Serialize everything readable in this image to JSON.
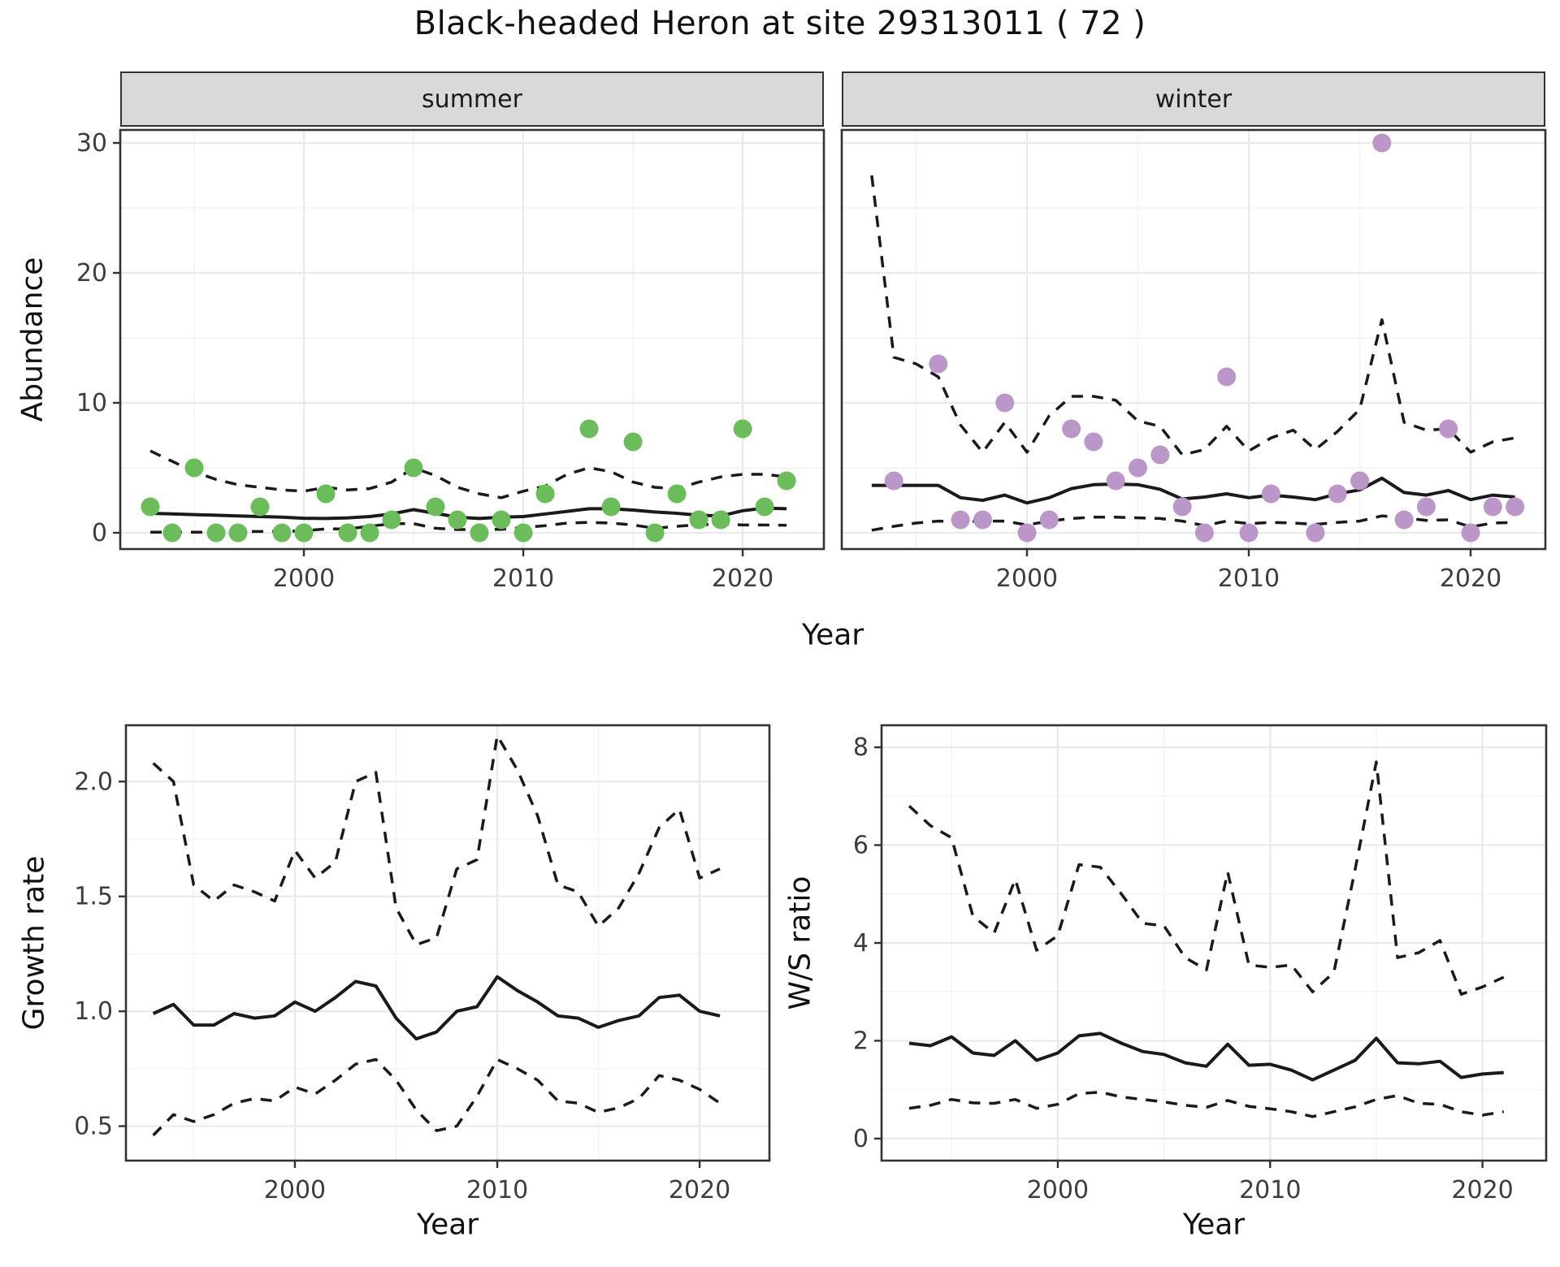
{
  "title": "Black-headed Heron at site 29313011 ( 72 )",
  "colors": {
    "summer_point": "#6abd5a",
    "winter_point": "#bb96c9",
    "line": "#1a1a1a",
    "strip_bg": "#d9d9d9",
    "panel_border": "#333333",
    "grid_major": "#e9e9e9",
    "grid_minor": "#f4f4f4",
    "tick_text": "#3d3d3d"
  },
  "top_row": {
    "xlabel": "Year",
    "facets": [
      "summer",
      "winter"
    ]
  },
  "chart_data": [
    {
      "id": "abundance-summer",
      "type": "scatter",
      "facet": "summer",
      "ylabel": "Abundance",
      "xlabel": "Year",
      "xlim": [
        1991.63,
        2023.7
      ],
      "ylim": [
        -1.25,
        31.0
      ],
      "xticks": [
        2000,
        2010,
        2020
      ],
      "xtick_labels": [
        "2000",
        "2010",
        "2020"
      ],
      "xminor": [
        1995,
        2005,
        2015
      ],
      "yticks": [
        0,
        10,
        20,
        30
      ],
      "ytick_labels": [
        "0",
        "10",
        "20",
        "30"
      ],
      "yminor": [
        5,
        15,
        25
      ],
      "show_ytick_labels": true,
      "point_color": "#6abd5a",
      "points": {
        "years": [
          1993,
          1994,
          1995,
          1996,
          1997,
          1998,
          1999,
          2000,
          2001,
          2002,
          2003,
          2004,
          2005,
          2006,
          2007,
          2008,
          2009,
          2010,
          2011,
          2013,
          2014,
          2015,
          2016,
          2017,
          2018,
          2019,
          2020,
          2021,
          2022
        ],
        "values": [
          2,
          0,
          5,
          0,
          0,
          2,
          0,
          0,
          3,
          0,
          0,
          1,
          5,
          2,
          1,
          0,
          1,
          0,
          3,
          8,
          2,
          7,
          0,
          3,
          1,
          1,
          8,
          2,
          4
        ]
      },
      "series": [
        {
          "name": "mean",
          "style": "solid",
          "years": [
            1993,
            1994,
            1995,
            1996,
            1997,
            1998,
            1999,
            2000,
            2001,
            2002,
            2003,
            2004,
            2005,
            2006,
            2007,
            2008,
            2009,
            2010,
            2011,
            2012,
            2013,
            2014,
            2015,
            2016,
            2017,
            2018,
            2019,
            2020,
            2021,
            2022
          ],
          "values": [
            1.5,
            1.45,
            1.4,
            1.35,
            1.3,
            1.25,
            1.2,
            1.12,
            1.1,
            1.15,
            1.25,
            1.45,
            1.78,
            1.5,
            1.2,
            1.1,
            1.2,
            1.25,
            1.45,
            1.65,
            1.85,
            1.85,
            1.75,
            1.6,
            1.5,
            1.35,
            1.3,
            1.7,
            1.9,
            1.85
          ]
        },
        {
          "name": "upper-ci",
          "style": "dashed",
          "years": [
            1993,
            1994,
            1995,
            1996,
            1997,
            1998,
            1999,
            2000,
            2001,
            2002,
            2003,
            2004,
            2005,
            2006,
            2007,
            2008,
            2009,
            2010,
            2011,
            2012,
            2013,
            2014,
            2015,
            2016,
            2017,
            2018,
            2019,
            2020,
            2021,
            2022
          ],
          "values": [
            6.3,
            5.5,
            4.7,
            4.1,
            3.7,
            3.5,
            3.3,
            3.2,
            3.5,
            3.3,
            3.4,
            3.9,
            5.0,
            4.4,
            3.5,
            3.0,
            2.7,
            3.2,
            3.6,
            4.5,
            5.0,
            4.7,
            3.9,
            3.5,
            3.4,
            3.9,
            4.3,
            4.5,
            4.5,
            4.3
          ]
        },
        {
          "name": "lower-ci",
          "style": "dashed",
          "years": [
            1993,
            1994,
            1995,
            1996,
            1997,
            1998,
            1999,
            2000,
            2001,
            2002,
            2003,
            2004,
            2005,
            2006,
            2007,
            2008,
            2009,
            2010,
            2011,
            2012,
            2013,
            2014,
            2015,
            2016,
            2017,
            2018,
            2019,
            2020,
            2021,
            2022
          ],
          "values": [
            0.05,
            0.05,
            0.05,
            0.05,
            0.1,
            0.1,
            0.1,
            0.15,
            0.3,
            0.3,
            0.5,
            0.7,
            0.7,
            0.35,
            0.25,
            0.25,
            0.27,
            0.4,
            0.55,
            0.75,
            0.8,
            0.75,
            0.6,
            0.35,
            0.5,
            0.62,
            0.66,
            0.6,
            0.6,
            0.58
          ]
        }
      ]
    },
    {
      "id": "abundance-winter",
      "type": "scatter",
      "facet": "winter",
      "ylabel": "Abundance",
      "xlabel": "Year",
      "xlim": [
        1991.65,
        2023.37
      ],
      "ylim": [
        -1.25,
        31.0
      ],
      "xticks": [
        2000,
        2010,
        2020
      ],
      "xtick_labels": [
        "2000",
        "2010",
        "2020"
      ],
      "xminor": [
        1995,
        2005,
        2015
      ],
      "yticks": [
        0,
        10,
        20,
        30
      ],
      "ytick_labels": [
        "0",
        "10",
        "20",
        "30"
      ],
      "yminor": [
        5,
        15,
        25
      ],
      "show_ytick_labels": false,
      "point_color": "#bb96c9",
      "points": {
        "years": [
          1994,
          1996,
          1997,
          1998,
          1999,
          2000,
          2001,
          2002,
          2003,
          2004,
          2005,
          2006,
          2007,
          2008,
          2009,
          2010,
          2011,
          2013,
          2014,
          2015,
          2016,
          2017,
          2018,
          2019,
          2020,
          2021,
          2022
        ],
        "values": [
          4,
          13,
          1,
          1,
          10,
          0,
          1,
          8,
          7,
          4,
          5,
          6,
          2,
          0,
          12,
          0,
          3,
          0,
          3,
          4,
          30,
          1,
          2,
          8,
          0,
          2,
          2
        ]
      },
      "series": [
        {
          "name": "mean",
          "style": "solid",
          "years": [
            1993,
            1994,
            1995,
            1996,
            1997,
            1998,
            1999,
            2000,
            2001,
            2002,
            2003,
            2004,
            2005,
            2006,
            2007,
            2008,
            2009,
            2010,
            2011,
            2012,
            2013,
            2014,
            2015,
            2016,
            2017,
            2018,
            2019,
            2020,
            2021,
            2022
          ],
          "values": [
            3.65,
            3.65,
            3.65,
            3.65,
            2.7,
            2.5,
            2.9,
            2.3,
            2.7,
            3.4,
            3.7,
            3.75,
            3.7,
            3.35,
            2.6,
            2.75,
            3.0,
            2.7,
            2.9,
            2.75,
            2.55,
            3.0,
            3.3,
            4.2,
            3.1,
            2.9,
            3.25,
            2.55,
            2.9,
            2.75
          ]
        },
        {
          "name": "upper-ci",
          "style": "dashed",
          "years": [
            1993,
            1994,
            1995,
            1996,
            1997,
            1998,
            1999,
            2000,
            2001,
            2002,
            2003,
            2004,
            2005,
            2006,
            2007,
            2008,
            2009,
            2010,
            2011,
            2012,
            2013,
            2014,
            2015,
            2016,
            2017,
            2018,
            2019,
            2020,
            2021,
            2022
          ],
          "values": [
            27.5,
            13.5,
            13.0,
            12.0,
            8.3,
            6.2,
            8.5,
            6.2,
            9.0,
            10.5,
            10.5,
            10.2,
            8.6,
            8.2,
            6.0,
            6.4,
            8.2,
            6.3,
            7.3,
            7.9,
            6.4,
            7.8,
            9.5,
            16.4,
            8.5,
            7.9,
            8.0,
            6.2,
            7.0,
            7.3
          ]
        },
        {
          "name": "lower-ci",
          "style": "dashed",
          "years": [
            1993,
            1994,
            1995,
            1996,
            1997,
            1998,
            1999,
            2000,
            2001,
            2002,
            2003,
            2004,
            2005,
            2006,
            2007,
            2008,
            2009,
            2010,
            2011,
            2012,
            2013,
            2014,
            2015,
            2016,
            2017,
            2018,
            2019,
            2020,
            2021,
            2022
          ],
          "values": [
            0.2,
            0.5,
            0.75,
            0.9,
            0.85,
            0.9,
            0.9,
            0.6,
            0.9,
            1.1,
            1.2,
            1.2,
            1.15,
            1.1,
            0.9,
            0.55,
            0.9,
            0.7,
            0.8,
            0.75,
            0.65,
            0.8,
            0.9,
            1.3,
            1.15,
            0.95,
            1.0,
            0.45,
            0.75,
            0.8
          ]
        }
      ]
    },
    {
      "id": "growth-rate",
      "type": "line",
      "ylabel": "Growth rate",
      "xlabel": "Year",
      "xlim": [
        1991.65,
        2023.45
      ],
      "ylim": [
        0.35,
        2.245
      ],
      "xticks": [
        2000,
        2010,
        2020
      ],
      "xtick_labels": [
        "2000",
        "2010",
        "2020"
      ],
      "xminor": [
        1995,
        2005,
        2015
      ],
      "yticks": [
        0.5,
        1.0,
        1.5,
        2.0
      ],
      "ytick_labels": [
        "0.5",
        "1.0",
        "1.5",
        "2.0"
      ],
      "yminor": [
        0.75,
        1.25,
        1.75
      ],
      "show_ytick_labels": true,
      "series": [
        {
          "name": "mean",
          "style": "solid",
          "years": [
            1993,
            1994,
            1995,
            1996,
            1997,
            1998,
            1999,
            2000,
            2001,
            2002,
            2003,
            2004,
            2005,
            2006,
            2007,
            2008,
            2009,
            2010,
            2011,
            2012,
            2013,
            2014,
            2015,
            2016,
            2017,
            2018,
            2019,
            2020,
            2021
          ],
          "values": [
            0.99,
            1.03,
            0.94,
            0.94,
            0.99,
            0.97,
            0.98,
            1.04,
            1.0,
            1.06,
            1.13,
            1.11,
            0.97,
            0.88,
            0.91,
            1.0,
            1.02,
            1.15,
            1.09,
            1.04,
            0.98,
            0.97,
            0.93,
            0.96,
            0.98,
            1.06,
            1.07,
            1.0,
            0.98
          ]
        },
        {
          "name": "upper-ci",
          "style": "dashed",
          "years": [
            1993,
            1994,
            1995,
            1996,
            1997,
            1998,
            1999,
            2000,
            2001,
            2002,
            2003,
            2004,
            2005,
            2006,
            2007,
            2008,
            2009,
            2010,
            2011,
            2012,
            2013,
            2014,
            2015,
            2016,
            2017,
            2018,
            2019,
            2020,
            2021
          ],
          "values": [
            2.08,
            2.0,
            1.55,
            1.48,
            1.55,
            1.52,
            1.48,
            1.7,
            1.58,
            1.65,
            2.0,
            2.04,
            1.45,
            1.29,
            1.32,
            1.62,
            1.66,
            2.2,
            2.05,
            1.85,
            1.55,
            1.52,
            1.37,
            1.45,
            1.6,
            1.8,
            1.88,
            1.58,
            1.62
          ]
        },
        {
          "name": "lower-ci",
          "style": "dashed",
          "years": [
            1993,
            1994,
            1995,
            1996,
            1997,
            1998,
            1999,
            2000,
            2001,
            2002,
            2003,
            2004,
            2005,
            2006,
            2007,
            2008,
            2009,
            2010,
            2011,
            2012,
            2013,
            2014,
            2015,
            2016,
            2017,
            2018,
            2019,
            2020,
            2021
          ],
          "values": [
            0.46,
            0.55,
            0.52,
            0.55,
            0.6,
            0.62,
            0.61,
            0.67,
            0.64,
            0.7,
            0.77,
            0.79,
            0.7,
            0.57,
            0.48,
            0.5,
            0.63,
            0.79,
            0.75,
            0.7,
            0.61,
            0.6,
            0.56,
            0.58,
            0.62,
            0.72,
            0.7,
            0.66,
            0.6
          ]
        }
      ]
    },
    {
      "id": "ws-ratio",
      "type": "line",
      "ylabel": "W/S ratio",
      "xlabel": "Year",
      "xlim": [
        1991.7,
        2023.0
      ],
      "ylim": [
        -0.45,
        8.45
      ],
      "xticks": [
        2000,
        2010,
        2020
      ],
      "xtick_labels": [
        "2000",
        "2010",
        "2020"
      ],
      "xminor": [
        1995,
        2005,
        2015
      ],
      "yticks": [
        0,
        2,
        4,
        6,
        8
      ],
      "ytick_labels": [
        "0",
        "2",
        "4",
        "6",
        "8"
      ],
      "yminor": [
        1,
        3,
        5,
        7
      ],
      "show_ytick_labels": true,
      "series": [
        {
          "name": "mean",
          "style": "solid",
          "years": [
            1993,
            1994,
            1995,
            1996,
            1997,
            1998,
            1999,
            2000,
            2001,
            2002,
            2003,
            2004,
            2005,
            2006,
            2007,
            2008,
            2009,
            2010,
            2011,
            2012,
            2013,
            2014,
            2015,
            2016,
            2017,
            2018,
            2019,
            2020,
            2021
          ],
          "values": [
            1.95,
            1.9,
            2.08,
            1.75,
            1.7,
            2.0,
            1.6,
            1.75,
            2.1,
            2.15,
            1.95,
            1.78,
            1.72,
            1.55,
            1.48,
            1.93,
            1.5,
            1.52,
            1.4,
            1.2,
            1.4,
            1.6,
            2.05,
            1.55,
            1.53,
            1.58,
            1.25,
            1.32,
            1.35
          ]
        },
        {
          "name": "upper-ci",
          "style": "dashed",
          "years": [
            1993,
            1994,
            1995,
            1996,
            1997,
            1998,
            1999,
            2000,
            2001,
            2002,
            2003,
            2004,
            2005,
            2006,
            2007,
            2008,
            2009,
            2010,
            2011,
            2012,
            2013,
            2014,
            2015,
            2016,
            2017,
            2018,
            2019,
            2020,
            2021
          ],
          "values": [
            6.8,
            6.4,
            6.15,
            4.55,
            4.2,
            5.3,
            3.85,
            4.15,
            5.6,
            5.55,
            5.0,
            4.4,
            4.35,
            3.7,
            3.45,
            5.45,
            3.55,
            3.5,
            3.55,
            3.0,
            3.4,
            5.5,
            7.7,
            3.7,
            3.8,
            4.05,
            2.95,
            3.1,
            3.3
          ]
        },
        {
          "name": "lower-ci",
          "style": "dashed",
          "years": [
            1993,
            1994,
            1995,
            1996,
            1997,
            1998,
            1999,
            2000,
            2001,
            2002,
            2003,
            2004,
            2005,
            2006,
            2007,
            2008,
            2009,
            2010,
            2011,
            2012,
            2013,
            2014,
            2015,
            2016,
            2017,
            2018,
            2019,
            2020,
            2021
          ],
          "values": [
            0.62,
            0.68,
            0.8,
            0.73,
            0.72,
            0.8,
            0.62,
            0.7,
            0.92,
            0.95,
            0.85,
            0.8,
            0.75,
            0.68,
            0.64,
            0.78,
            0.66,
            0.61,
            0.55,
            0.45,
            0.55,
            0.65,
            0.8,
            0.88,
            0.72,
            0.7,
            0.55,
            0.48,
            0.55
          ]
        }
      ]
    }
  ]
}
